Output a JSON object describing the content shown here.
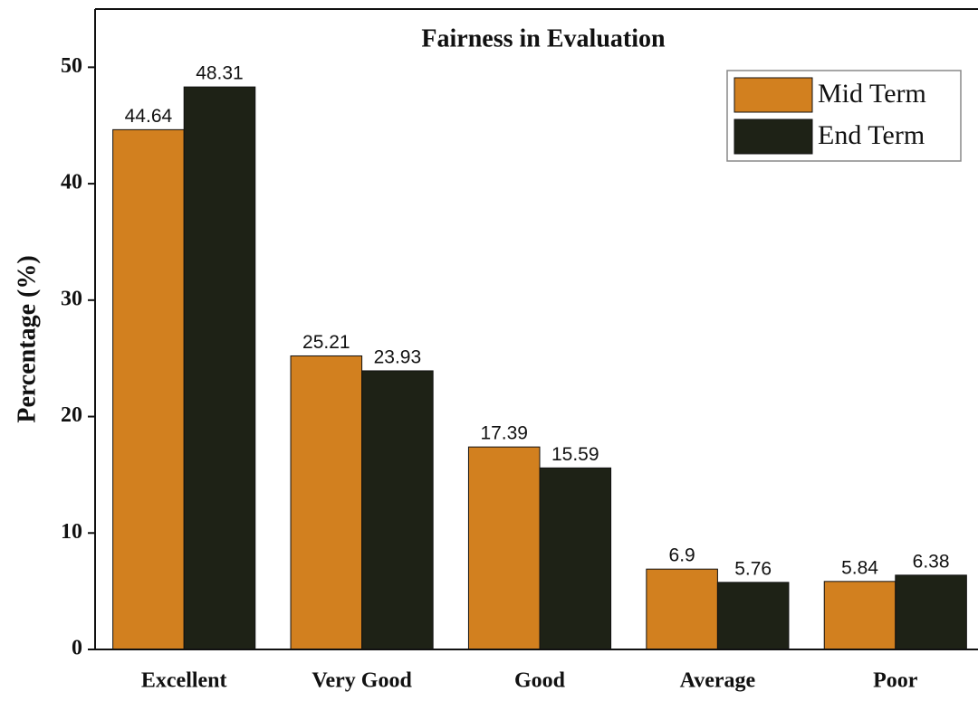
{
  "chart_data": {
    "type": "bar",
    "title": "Fairness in Evaluation",
    "ylabel": "Percentage (%)",
    "categories": [
      "Excellent",
      "Very Good",
      "Good",
      "Average",
      "Poor"
    ],
    "series": [
      {
        "name": "Mid Term",
        "color": "#d2801f",
        "values": [
          44.64,
          25.21,
          17.39,
          6.9,
          5.84
        ]
      },
      {
        "name": "End Term",
        "color": "#1e2216",
        "values": [
          48.31,
          23.93,
          15.59,
          5.76,
          6.38
        ]
      }
    ],
    "ylim": [
      0,
      55
    ],
    "yticks": [
      0,
      10,
      20,
      30,
      40,
      50
    ],
    "grid": false,
    "legend": "upper right"
  }
}
